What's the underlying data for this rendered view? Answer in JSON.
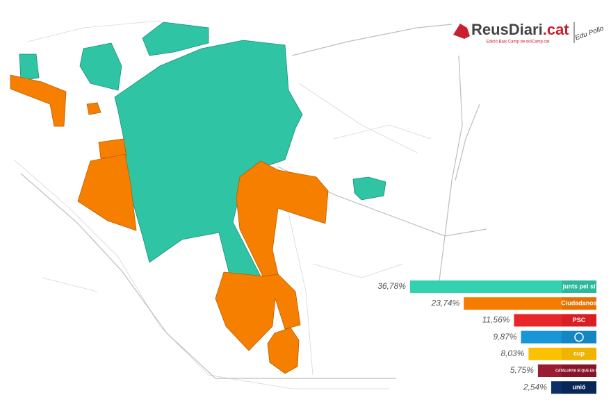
{
  "header": {
    "brand": "ReusDiari",
    "brand_suffix": ".cat",
    "edition": "Edició Baix Camp de dolCamp.cat",
    "signature": "Edu Pollo"
  },
  "chart_data": {
    "type": "bar",
    "orientation": "horizontal",
    "categories": [
      "junts pel sí",
      "Ciudadanos",
      "PSC",
      null,
      "cup",
      "CATALUNYA SÍ QUE ES POT",
      "unió"
    ],
    "values": [
      36.78,
      23.74,
      11.56,
      9.87,
      8.03,
      5.75,
      2.54
    ],
    "value_labels": [
      "36,78%",
      "23,74%",
      "11,56%",
      "9,87%",
      "8,03%",
      "5,75%",
      "2,54%"
    ],
    "colors": [
      "#34d1b0",
      "#f57c00",
      "#e8262a",
      "#1996d8",
      "#fcc100",
      "#9b1b30",
      "#0b2f6b"
    ],
    "logo_colors": [
      "#2bb89b",
      "#e96f00",
      "#d81f24",
      "#1486c4",
      "#f0b400",
      "#86142a",
      "#082656"
    ]
  }
}
